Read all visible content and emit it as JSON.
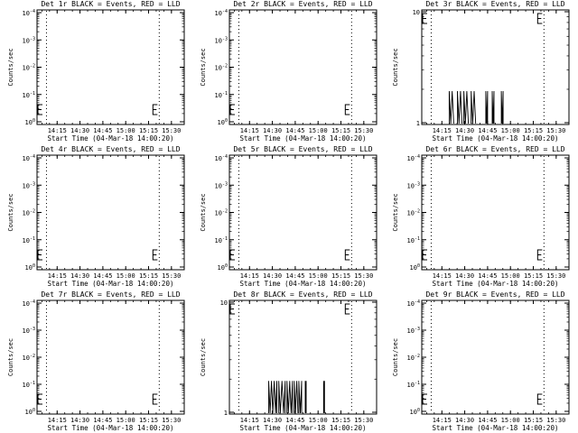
{
  "chart_data": [
    {
      "type": "line",
      "title": "Det 1r BLACK = Events, RED = LLD",
      "xlabel": "Start Time (04-Mar-18 14:00:20)",
      "ylabel": "Counts/sec",
      "x_ticks": [
        "14:15",
        "14:30",
        "14:45",
        "15:00",
        "15:15",
        "15:30"
      ],
      "y_scale": "log",
      "y_ticks": [
        "10^-4",
        "10^-3",
        "10^-2",
        "10^-1",
        "10^0"
      ],
      "markers": [
        "14:08",
        "15:22"
      ],
      "series": [
        {
          "values": []
        }
      ]
    },
    {
      "type": "line",
      "title": "Det 2r BLACK = Events, RED = LLD",
      "xlabel": "Start Time (04-Mar-18 14:00:20)",
      "ylabel": "Counts/sec",
      "x_ticks": [
        "14:15",
        "14:30",
        "14:45",
        "15:00",
        "15:15",
        "15:30"
      ],
      "y_scale": "log",
      "y_ticks": [
        "10^-4",
        "10^-3",
        "10^-2",
        "10^-1",
        "10^0"
      ],
      "markers": [
        "14:08",
        "15:22"
      ],
      "series": [
        {
          "values": []
        }
      ]
    },
    {
      "type": "line",
      "title": "Det 3r BLACK = Events, RED = LLD",
      "xlabel": "Start Time (04-Mar-18 14:00:20)",
      "ylabel": "Counts/sec",
      "x_ticks": [
        "14:15",
        "14:30",
        "14:45",
        "15:00",
        "15:15",
        "15:30"
      ],
      "y_scale": "log",
      "y_ticks": [
        "10",
        "1"
      ],
      "markers": [
        "14:08",
        "15:22"
      ],
      "series": [
        {
          "bursts": [
            [
              14.33,
              14.38
            ],
            [
              14.42,
              14.47
            ],
            [
              14.49,
              14.54
            ],
            [
              14.57,
              14.62
            ],
            [
              14.73,
              14.75
            ],
            [
              14.8,
              14.82
            ],
            [
              14.9,
              14.92
            ]
          ]
        }
      ]
    },
    {
      "type": "line",
      "title": "Det 4r BLACK = Events, RED = LLD",
      "xlabel": "Start Time (04-Mar-18 14:00:20)",
      "ylabel": "Counts/sec",
      "x_ticks": [
        "14:15",
        "14:30",
        "14:45",
        "15:00",
        "15:15",
        "15:30"
      ],
      "y_scale": "log",
      "y_ticks": [
        "10^-4",
        "10^-3",
        "10^-2",
        "10^-1",
        "10^0"
      ],
      "markers": [
        "14:08",
        "15:22"
      ],
      "series": [
        {
          "values": []
        }
      ]
    },
    {
      "type": "line",
      "title": "Det 5r BLACK = Events, RED = LLD",
      "xlabel": "Start Time (04-Mar-18 14:00:20)",
      "ylabel": "Counts/sec",
      "x_ticks": [
        "14:15",
        "14:30",
        "14:45",
        "15:00",
        "15:15",
        "15:30"
      ],
      "y_scale": "log",
      "y_ticks": [
        "10^-4",
        "10^-3",
        "10^-2",
        "10^-1",
        "10^0"
      ],
      "markers": [
        "14:08",
        "15:22"
      ],
      "series": [
        {
          "values": []
        }
      ]
    },
    {
      "type": "line",
      "title": "Det 6r BLACK = Events, RED = LLD",
      "xlabel": "Start Time (04-Mar-18 14:00:20)",
      "ylabel": "Counts/sec",
      "x_ticks": [
        "14:15",
        "14:30",
        "14:45",
        "15:00",
        "15:15",
        "15:30"
      ],
      "y_scale": "log",
      "y_ticks": [
        "10^-4",
        "10^-3",
        "10^-2",
        "10^-1",
        "10^0"
      ],
      "markers": [
        "14:08",
        "15:22"
      ],
      "series": [
        {
          "values": []
        }
      ]
    },
    {
      "type": "line",
      "title": "Det 7r BLACK = Events, RED = LLD",
      "xlabel": "Start Time (04-Mar-18 14:00:20)",
      "ylabel": "Counts/sec",
      "x_ticks": [
        "14:15",
        "14:30",
        "14:45",
        "15:00",
        "15:15",
        "15:30"
      ],
      "y_scale": "log",
      "y_ticks": [
        "10^-4",
        "10^-3",
        "10^-2",
        "10^-1",
        "10^0"
      ],
      "markers": [
        "14:08",
        "15:22"
      ],
      "series": [
        {
          "values": []
        }
      ]
    },
    {
      "type": "line",
      "title": "Det 8r BLACK = Events, RED = LLD",
      "xlabel": "Start Time (04-Mar-18 14:00:20)",
      "ylabel": "Counts/sec",
      "x_ticks": [
        "14:15",
        "14:30",
        "14:45",
        "15:00",
        "15:15",
        "15:30"
      ],
      "y_scale": "log",
      "y_ticks": [
        "10",
        "1"
      ],
      "markers": [
        "14:08",
        "15:22"
      ],
      "series": [
        {
          "bursts": [
            [
              14.46,
              14.55
            ],
            [
              14.57,
              14.64
            ],
            [
              14.66,
              14.72
            ],
            [
              14.74,
              14.78
            ],
            [
              14.79,
              14.82
            ],
            [
              14.86,
              14.87
            ],
            [
              15.06,
              15.07
            ]
          ]
        }
      ]
    },
    {
      "type": "line",
      "title": "Det 9r BLACK = Events, RED = LLD",
      "xlabel": "Start Time (04-Mar-18 14:00:20)",
      "ylabel": "Counts/sec",
      "x_ticks": [
        "14:15",
        "14:30",
        "14:45",
        "15:00",
        "15:15",
        "15:30"
      ],
      "y_scale": "log",
      "y_ticks": [
        "10^-4",
        "10^-3",
        "10^-2",
        "10^-1",
        "10^0"
      ],
      "markers": [
        "14:08",
        "15:22"
      ],
      "series": [
        {
          "values": []
        }
      ]
    }
  ]
}
